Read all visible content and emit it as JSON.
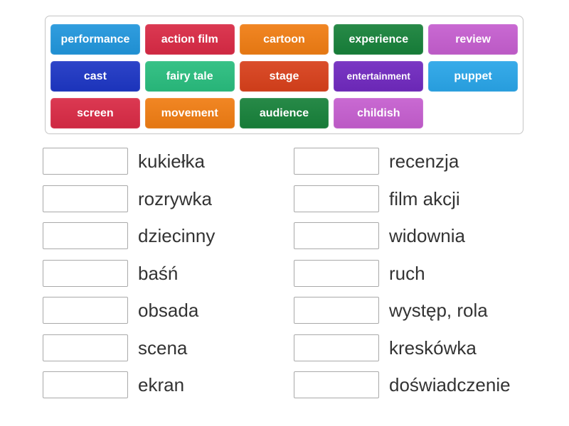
{
  "word_bank": {
    "tiles": [
      {
        "label": "performance",
        "color": "#2196dc"
      },
      {
        "label": "action film",
        "color": "#d92a45"
      },
      {
        "label": "cartoon",
        "color": "#f07d13"
      },
      {
        "label": "experience",
        "color": "#17813a"
      },
      {
        "label": "review",
        "color": "#c55ecf"
      },
      {
        "label": "cast",
        "color": "#1d36c4"
      },
      {
        "label": "fairy tale",
        "color": "#29bd7e"
      },
      {
        "label": "stage",
        "color": "#d8401b"
      },
      {
        "label": "entertainment",
        "color": "#7029bf"
      },
      {
        "label": "puppet",
        "color": "#29a5e8"
      },
      {
        "label": "screen",
        "color": "#d92a45"
      },
      {
        "label": "movement",
        "color": "#f07d13"
      },
      {
        "label": "audience",
        "color": "#17813a"
      },
      {
        "label": "childish",
        "color": "#c55ecf"
      }
    ]
  },
  "match_list": {
    "left": [
      "kukiełka",
      "rozrywka",
      "dziecinny",
      "baśń",
      "obsada",
      "scena",
      "ekran"
    ],
    "right": [
      "recenzja",
      "film akcji",
      "widownia",
      "ruch",
      "występ, rola",
      "kreskówka",
      "doświadczenie"
    ]
  },
  "colors": {
    "panel_border": "#c5c5c5",
    "slot_border": "#a9a9a9",
    "label_text": "#333333",
    "tile_text": "#ffffff"
  }
}
